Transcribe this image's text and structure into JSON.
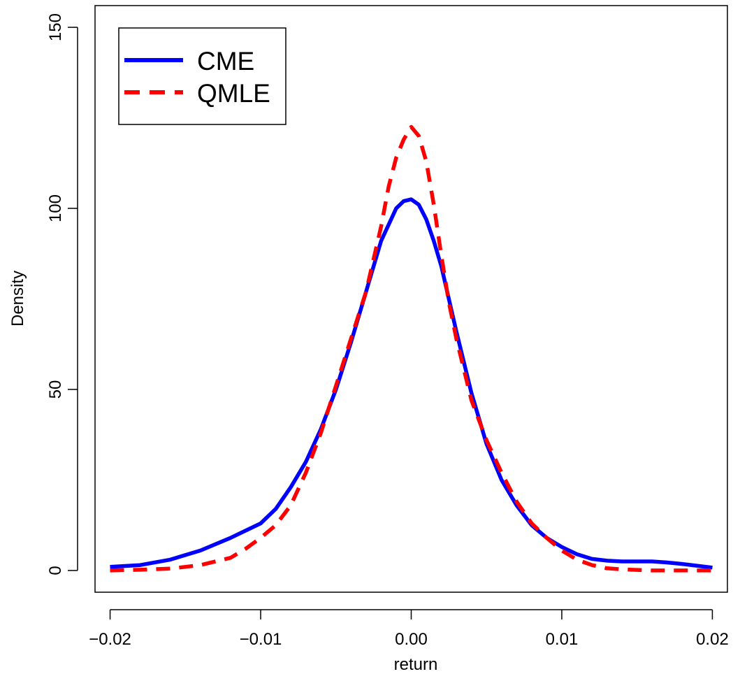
{
  "chart_data": {
    "type": "line",
    "title": "",
    "xlabel": "return",
    "ylabel": "Density",
    "xlim": [
      -0.021,
      0.021
    ],
    "ylim": [
      -6,
      156
    ],
    "x_ticks": [
      {
        "value": -0.02,
        "label": "−0.02"
      },
      {
        "value": -0.01,
        "label": "−0.01"
      },
      {
        "value": 0.0,
        "label": "0.00"
      },
      {
        "value": 0.01,
        "label": "0.01"
      },
      {
        "value": 0.02,
        "label": "0.02"
      }
    ],
    "y_ticks": [
      {
        "value": 0,
        "label": "0"
      },
      {
        "value": 50,
        "label": "50"
      },
      {
        "value": 100,
        "label": "100"
      },
      {
        "value": 150,
        "label": "150"
      }
    ],
    "grid": false,
    "legend_position": "top-left",
    "series": [
      {
        "name": "CME",
        "color": "#0000ff",
        "style": "solid",
        "x": [
          -0.02,
          -0.018,
          -0.016,
          -0.014,
          -0.012,
          -0.01,
          -0.009,
          -0.008,
          -0.007,
          -0.006,
          -0.005,
          -0.004,
          -0.003,
          -0.002,
          -0.001,
          -0.0005,
          0.0,
          0.0005,
          0.001,
          0.0015,
          0.002,
          0.003,
          0.004,
          0.005,
          0.006,
          0.007,
          0.008,
          0.009,
          0.01,
          0.011,
          0.012,
          0.013,
          0.014,
          0.016,
          0.017,
          0.018,
          0.02
        ],
        "y": [
          1,
          1.5,
          3,
          5.5,
          9,
          13,
          17,
          23,
          30,
          39,
          50,
          63,
          77,
          91,
          100,
          102,
          102.5,
          101,
          97,
          91,
          84,
          66,
          49,
          35,
          25,
          18,
          12.5,
          9,
          6.5,
          4.5,
          3.2,
          2.7,
          2.5,
          2.5,
          2.2,
          1.8,
          0.8
        ]
      },
      {
        "name": "QMLE",
        "color": "#ff0000",
        "style": "dashed",
        "x": [
          -0.02,
          -0.018,
          -0.016,
          -0.014,
          -0.012,
          -0.011,
          -0.01,
          -0.009,
          -0.008,
          -0.007,
          -0.006,
          -0.005,
          -0.004,
          -0.003,
          -0.002,
          -0.0015,
          -0.001,
          -0.0005,
          0.0,
          0.0005,
          0.001,
          0.0015,
          0.002,
          0.0025,
          0.003,
          0.004,
          0.005,
          0.006,
          0.007,
          0.008,
          0.009,
          0.01,
          0.011,
          0.012,
          0.013,
          0.014,
          0.016,
          0.018,
          0.02
        ],
        "y": [
          0,
          0.2,
          0.5,
          1.5,
          3.5,
          6,
          9,
          12.5,
          18,
          27,
          38,
          51,
          64,
          77,
          95,
          106,
          114,
          119,
          122.5,
          120,
          113,
          101,
          87,
          74,
          64,
          47,
          36,
          27,
          19,
          13,
          9,
          5.5,
          3,
          1.5,
          0.6,
          0.3,
          0,
          0,
          0
        ]
      }
    ]
  }
}
